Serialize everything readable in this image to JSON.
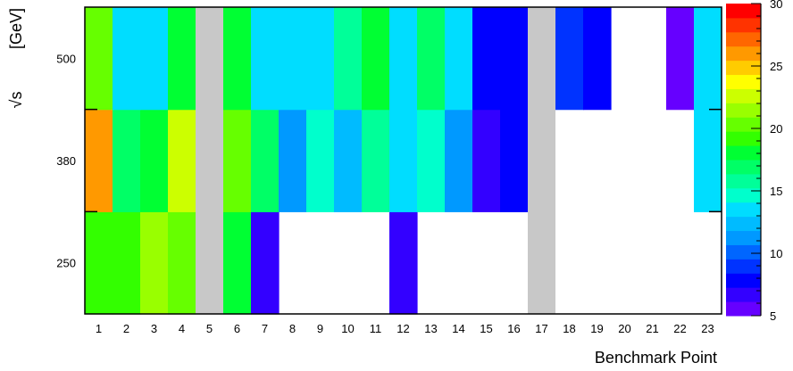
{
  "chart_data": {
    "type": "heatmap",
    "title": "",
    "xlabel": "Benchmark Point",
    "ylabel_root": "√s",
    "ylabel_unit": "[GeV]",
    "x_categories": [
      "1",
      "2",
      "3",
      "4",
      "5",
      "6",
      "7",
      "8",
      "9",
      "10",
      "11",
      "12",
      "13",
      "14",
      "15",
      "16",
      "17",
      "18",
      "19",
      "20",
      "21",
      "22",
      "23"
    ],
    "y_categories": [
      "250",
      "380",
      "500"
    ],
    "missing_columns": [
      "5",
      "17"
    ],
    "missing_color": "#c8c8c8",
    "z_range": [
      5,
      30
    ],
    "colorbar_ticks": [
      "5",
      "10",
      "15",
      "20",
      "25",
      "30"
    ],
    "values": {
      "500": [
        20.5,
        14,
        14,
        18.5,
        null,
        18.5,
        14,
        14,
        14,
        15.5,
        18,
        14,
        16.5,
        13,
        8,
        8,
        null,
        9.5,
        8,
        0,
        0,
        6,
        14
      ],
      "380": [
        26.5,
        16.5,
        17.5,
        22.5,
        null,
        20.5,
        17,
        11,
        15,
        12,
        15.5,
        14,
        15,
        11,
        6.5,
        8,
        null,
        0,
        0,
        0,
        0,
        0,
        14
      ],
      "250": [
        19.5,
        19.5,
        21,
        20,
        null,
        17.5,
        6.5,
        0,
        0,
        0,
        0,
        6.5,
        0,
        0,
        0,
        0,
        null,
        0,
        0,
        0,
        0,
        0,
        0
      ]
    }
  }
}
